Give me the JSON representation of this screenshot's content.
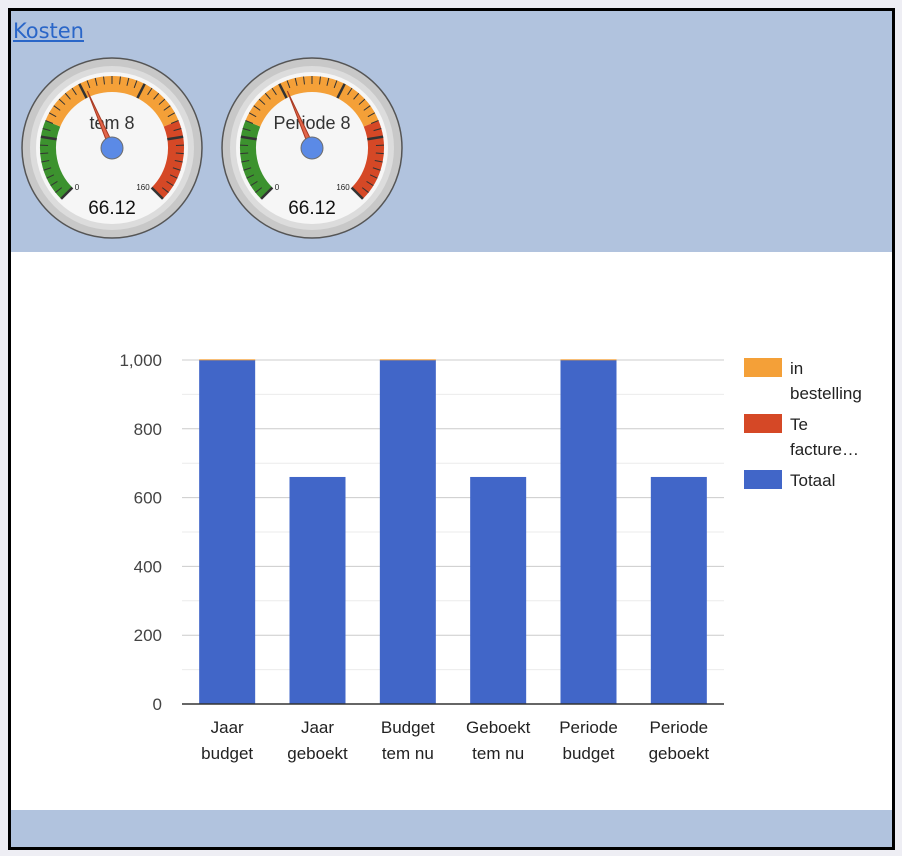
{
  "header": {
    "link_label": "Kosten"
  },
  "gauges": [
    {
      "label": "tem 8",
      "value": 66.12,
      "value_text": "66.12",
      "min_label": "0",
      "max_label": "160",
      "min": 0,
      "max": 160
    },
    {
      "label": "Periode 8",
      "value": 66.12,
      "value_text": "66.12",
      "min_label": "0",
      "max_label": "160",
      "min": 0,
      "max": 160
    }
  ],
  "colors": {
    "totaal": "#4166c8",
    "te_factureren": "#d54826",
    "in_bestelling": "#f4a038",
    "gauge_green": "#3c922e",
    "gauge_orange": "#f4a038",
    "gauge_red": "#d54826",
    "needle_hub": "#5b8ae6",
    "panel_bg": "#b1c3de"
  },
  "chart_data": {
    "type": "bar",
    "stacked": true,
    "categories": [
      [
        "Jaar",
        "budget"
      ],
      [
        "Jaar",
        "geboekt"
      ],
      [
        "Budget",
        "tem nu"
      ],
      [
        "Geboekt",
        "tem nu"
      ],
      [
        "Periode",
        "budget"
      ],
      [
        "Periode",
        "geboekt"
      ]
    ],
    "series": [
      {
        "name": "Totaal",
        "values": [
          1000,
          660,
          1000,
          660,
          1000,
          660
        ]
      },
      {
        "name": "Te facture…",
        "values": [
          0,
          0,
          0,
          0,
          0,
          0
        ]
      },
      {
        "name": "in bestelling",
        "values": [
          2,
          0,
          2,
          0,
          2,
          0
        ]
      }
    ],
    "legend": [
      {
        "lines": [
          "in",
          "bestelling"
        ]
      },
      {
        "lines": [
          "Te",
          "facture…"
        ]
      },
      {
        "lines": [
          "Totaal"
        ]
      }
    ],
    "yticks": [
      "0",
      "200",
      "400",
      "600",
      "800",
      "1,000"
    ],
    "ylim": [
      0,
      1000
    ],
    "grid": true,
    "legend_position": "right"
  }
}
